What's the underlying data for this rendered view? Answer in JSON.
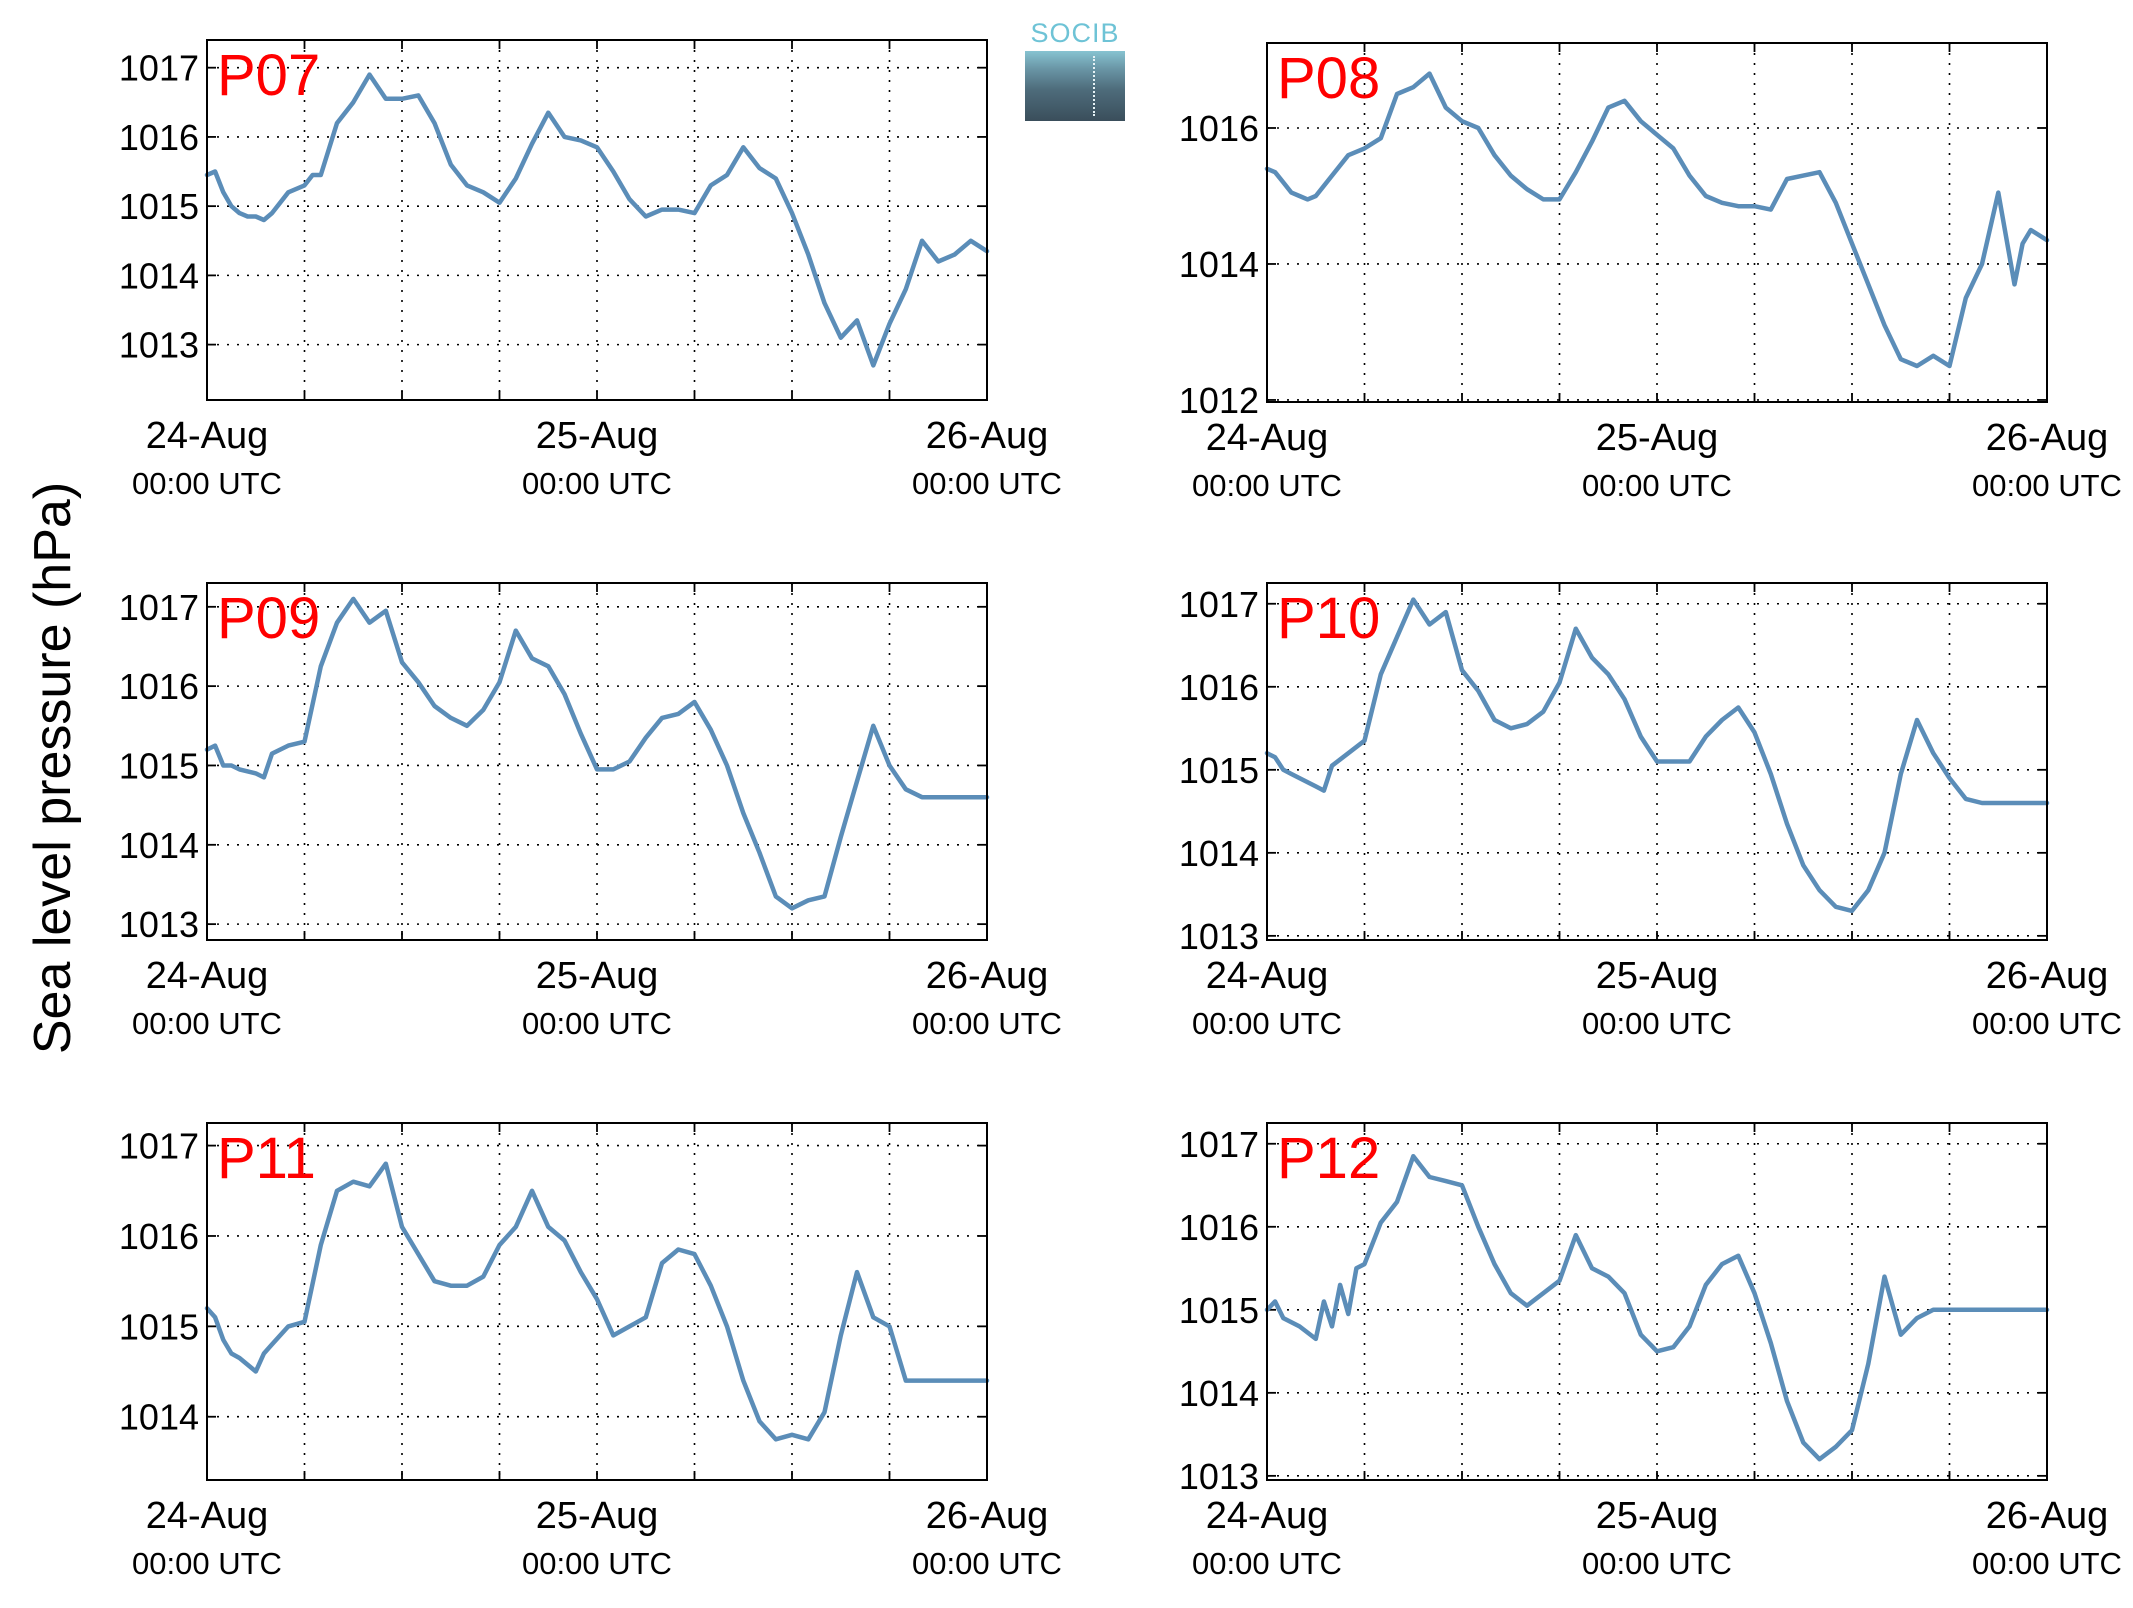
{
  "figure": {
    "ylabel": "Sea level pressure (hPa)",
    "line_color": "#5b8db8",
    "panel_label_color": "#ff0000",
    "logo_text": "SOCIB"
  },
  "chart_data": [
    {
      "type": "line",
      "panel_label": "P07",
      "ylim": [
        1012.2,
        1017.4
      ],
      "yticks": [
        1013,
        1014,
        1015,
        1016,
        1017
      ],
      "xlim": [
        0,
        48
      ],
      "xtick_labels": [
        {
          "x": 0,
          "day": "24-Aug",
          "time": "00:00 UTC"
        },
        {
          "x": 24,
          "day": "25-Aug",
          "time": "00:00 UTC"
        },
        {
          "x": 48,
          "day": "26-Aug",
          "time": "00:00 UTC"
        }
      ],
      "grid": true,
      "x_hours": [
        0,
        0.5,
        1,
        1.5,
        2,
        2.5,
        3,
        3.5,
        4,
        5,
        6,
        6.5,
        7,
        8,
        9,
        10,
        11,
        12,
        13,
        14,
        15,
        16,
        17,
        18,
        19,
        20,
        21,
        22,
        23,
        24,
        25,
        26,
        27,
        28,
        29,
        30,
        31,
        32,
        33,
        34,
        35,
        36,
        37,
        38,
        39,
        40,
        41,
        42,
        43,
        44,
        45,
        46,
        47,
        48
      ],
      "values": [
        1015.45,
        1015.5,
        1015.2,
        1015.0,
        1014.9,
        1014.85,
        1014.85,
        1014.8,
        1014.9,
        1015.2,
        1015.3,
        1015.45,
        1015.45,
        1016.2,
        1016.5,
        1016.9,
        1016.55,
        1016.55,
        1016.6,
        1016.2,
        1015.6,
        1015.3,
        1015.2,
        1015.05,
        1015.4,
        1015.9,
        1016.35,
        1016.0,
        1015.95,
        1015.85,
        1015.5,
        1015.1,
        1014.85,
        1014.95,
        1014.95,
        1014.9,
        1015.3,
        1015.45,
        1015.85,
        1015.55,
        1015.4,
        1014.9,
        1014.3,
        1013.6,
        1013.1,
        1013.35,
        1012.7,
        1013.3,
        1013.8,
        1014.5,
        1014.2,
        1014.3,
        1014.5,
        1014.35
      ]
    },
    {
      "type": "line",
      "panel_label": "P08",
      "ylim": [
        1011.97,
        1017.25
      ],
      "yticks": [
        1012,
        1014,
        1016
      ],
      "xlim": [
        0,
        48
      ],
      "xtick_labels": [
        {
          "x": 0,
          "day": "24-Aug",
          "time": "00:00 UTC"
        },
        {
          "x": 24,
          "day": "25-Aug",
          "time": "00:00 UTC"
        },
        {
          "x": 48,
          "day": "26-Aug",
          "time": "00:00 UTC"
        }
      ],
      "grid": true,
      "x_hours": [
        0,
        0.5,
        1,
        1.5,
        2,
        2.5,
        3,
        4,
        5,
        6,
        7,
        8,
        9,
        10,
        11,
        12,
        13,
        14,
        15,
        16,
        17,
        18,
        19,
        20,
        21,
        22,
        23,
        24,
        25,
        26,
        27,
        28,
        29,
        30,
        31,
        32,
        33,
        34,
        35,
        36,
        37,
        38,
        39,
        40,
        41,
        42,
        43,
        44,
        45,
        46,
        46.5,
        47,
        48
      ],
      "values": [
        1015.4,
        1015.35,
        1015.2,
        1015.05,
        1015.0,
        1014.95,
        1015.0,
        1015.3,
        1015.6,
        1015.7,
        1015.85,
        1016.5,
        1016.6,
        1016.8,
        1016.3,
        1016.1,
        1016.0,
        1015.6,
        1015.3,
        1015.1,
        1014.95,
        1014.95,
        1015.35,
        1015.8,
        1016.3,
        1016.4,
        1016.1,
        1015.9,
        1015.7,
        1015.3,
        1015.0,
        1014.9,
        1014.85,
        1014.85,
        1014.8,
        1015.25,
        1015.3,
        1015.35,
        1014.9,
        1014.3,
        1013.7,
        1013.1,
        1012.6,
        1012.5,
        1012.65,
        1012.5,
        1013.5,
        1014.0,
        1015.05,
        1013.7,
        1014.3,
        1014.5,
        1014.35
      ]
    },
    {
      "type": "line",
      "panel_label": "P09",
      "ylim": [
        1012.8,
        1017.3
      ],
      "yticks": [
        1013,
        1014,
        1015,
        1016,
        1017
      ],
      "xlim": [
        0,
        48
      ],
      "xtick_labels": [
        {
          "x": 0,
          "day": "24-Aug",
          "time": "00:00 UTC"
        },
        {
          "x": 24,
          "day": "25-Aug",
          "time": "00:00 UTC"
        },
        {
          "x": 48,
          "day": "26-Aug",
          "time": "00:00 UTC"
        }
      ],
      "grid": true,
      "x_hours": [
        0,
        0.5,
        1,
        1.5,
        2,
        3,
        3.5,
        4,
        5,
        6,
        7,
        8,
        9,
        10,
        11,
        12,
        13,
        14,
        15,
        16,
        17,
        18,
        19,
        20,
        21,
        22,
        23,
        24,
        25,
        26,
        27,
        28,
        29,
        30,
        31,
        32,
        33,
        34,
        35,
        36,
        37,
        38,
        39,
        40,
        41,
        42,
        43,
        44,
        45,
        46,
        47,
        48
      ],
      "values": [
        1015.2,
        1015.25,
        1015.0,
        1015.0,
        1014.95,
        1014.9,
        1014.85,
        1015.15,
        1015.25,
        1015.3,
        1016.25,
        1016.8,
        1017.1,
        1016.8,
        1016.95,
        1016.3,
        1016.05,
        1015.75,
        1015.6,
        1015.5,
        1015.7,
        1016.05,
        1016.7,
        1016.35,
        1016.25,
        1015.9,
        1015.4,
        1014.95,
        1014.95,
        1015.05,
        1015.35,
        1015.6,
        1015.65,
        1015.8,
        1015.45,
        1015.0,
        1014.4,
        1013.9,
        1013.35,
        1013.2,
        1013.3,
        1013.35,
        1014.1,
        1014.8,
        1015.5,
        1015.0,
        1014.7,
        1014.6,
        1014.6,
        1014.6,
        1014.6,
        1014.6
      ]
    },
    {
      "type": "line",
      "panel_label": "P10",
      "ylim": [
        1012.95,
        1017.25
      ],
      "yticks": [
        1013,
        1014,
        1015,
        1016,
        1017
      ],
      "xlim": [
        0,
        48
      ],
      "xtick_labels": [
        {
          "x": 0,
          "day": "24-Aug",
          "time": "00:00 UTC"
        },
        {
          "x": 24,
          "day": "25-Aug",
          "time": "00:00 UTC"
        },
        {
          "x": 48,
          "day": "26-Aug",
          "time": "00:00 UTC"
        }
      ],
      "grid": true,
      "x_hours": [
        0,
        0.5,
        1,
        1.5,
        2,
        3,
        3.5,
        4,
        5,
        6,
        7,
        8,
        9,
        10,
        11,
        12,
        13,
        14,
        15,
        16,
        17,
        18,
        19,
        20,
        21,
        22,
        23,
        24,
        25,
        26,
        27,
        28,
        29,
        30,
        31,
        32,
        33,
        34,
        35,
        36,
        37,
        38,
        39,
        40,
        41,
        42,
        43,
        44,
        45,
        46,
        47,
        47.5,
        48
      ],
      "values": [
        1015.2,
        1015.15,
        1015.0,
        1014.95,
        1014.9,
        1014.8,
        1014.75,
        1015.05,
        1015.2,
        1015.35,
        1016.15,
        1016.6,
        1017.05,
        1016.75,
        1016.9,
        1016.2,
        1015.95,
        1015.6,
        1015.5,
        1015.55,
        1015.7,
        1016.05,
        1016.7,
        1016.35,
        1016.15,
        1015.85,
        1015.4,
        1015.1,
        1015.1,
        1015.1,
        1015.4,
        1015.6,
        1015.75,
        1015.45,
        1014.95,
        1014.35,
        1013.85,
        1013.55,
        1013.35,
        1013.3,
        1013.55,
        1014.0,
        1014.95,
        1015.6,
        1015.2,
        1014.9,
        1014.65,
        1014.6,
        1014.6,
        1014.6,
        1014.6,
        1014.6,
        1014.6
      ]
    },
    {
      "type": "line",
      "panel_label": "P11",
      "ylim": [
        1013.3,
        1017.25
      ],
      "yticks": [
        1014,
        1015,
        1016,
        1017
      ],
      "xlim": [
        0,
        48
      ],
      "xtick_labels": [
        {
          "x": 0,
          "day": "24-Aug",
          "time": "00:00 UTC"
        },
        {
          "x": 24,
          "day": "25-Aug",
          "time": "00:00 UTC"
        },
        {
          "x": 48,
          "day": "26-Aug",
          "time": "00:00 UTC"
        }
      ],
      "grid": true,
      "x_hours": [
        0,
        0.5,
        1,
        1.5,
        2,
        3,
        3.5,
        4,
        5,
        6,
        7,
        8,
        9,
        10,
        11,
        12,
        13,
        14,
        15,
        16,
        17,
        18,
        19,
        20,
        21,
        22,
        23,
        24,
        25,
        26,
        27,
        28,
        29,
        30,
        31,
        32,
        33,
        34,
        35,
        36,
        37,
        38,
        39,
        40,
        41,
        42,
        43,
        44,
        45,
        46,
        47,
        48
      ],
      "values": [
        1015.2,
        1015.1,
        1014.85,
        1014.7,
        1014.65,
        1014.5,
        1014.7,
        1014.8,
        1015.0,
        1015.05,
        1015.9,
        1016.5,
        1016.6,
        1016.55,
        1016.8,
        1016.1,
        1015.8,
        1015.5,
        1015.45,
        1015.45,
        1015.55,
        1015.9,
        1016.1,
        1016.5,
        1016.1,
        1015.95,
        1015.6,
        1015.3,
        1014.9,
        1015.0,
        1015.1,
        1015.7,
        1015.85,
        1015.8,
        1015.45,
        1015.0,
        1014.4,
        1013.95,
        1013.75,
        1013.8,
        1013.75,
        1014.05,
        1014.9,
        1015.6,
        1015.1,
        1015.0,
        1014.4,
        1014.4,
        1014.4,
        1014.4,
        1014.4,
        1014.4
      ]
    },
    {
      "type": "line",
      "panel_label": "P12",
      "ylim": [
        1012.95,
        1017.25
      ],
      "yticks": [
        1013,
        1014,
        1015,
        1016,
        1017
      ],
      "xlim": [
        0,
        48
      ],
      "xtick_labels": [
        {
          "x": 0,
          "day": "24-Aug",
          "time": "00:00 UTC"
        },
        {
          "x": 24,
          "day": "25-Aug",
          "time": "00:00 UTC"
        },
        {
          "x": 48,
          "day": "26-Aug",
          "time": "00:00 UTC"
        }
      ],
      "grid": true,
      "x_hours": [
        0,
        0.5,
        1,
        1.5,
        2,
        3,
        3.5,
        4,
        4.5,
        5,
        5.5,
        6,
        7,
        8,
        9,
        10,
        11,
        12,
        13,
        14,
        15,
        16,
        17,
        18,
        19,
        20,
        21,
        22,
        23,
        24,
        25,
        26,
        27,
        28,
        29,
        30,
        31,
        32,
        33,
        34,
        35,
        36,
        37,
        38,
        39,
        40,
        41,
        42,
        43,
        44,
        45,
        46,
        47,
        48
      ],
      "values": [
        1015.0,
        1015.1,
        1014.9,
        1014.85,
        1014.8,
        1014.65,
        1015.1,
        1014.8,
        1015.3,
        1014.95,
        1015.5,
        1015.55,
        1016.05,
        1016.3,
        1016.85,
        1016.6,
        1016.55,
        1016.5,
        1016.0,
        1015.55,
        1015.2,
        1015.05,
        1015.2,
        1015.35,
        1015.9,
        1015.5,
        1015.4,
        1015.2,
        1014.7,
        1014.5,
        1014.55,
        1014.8,
        1015.3,
        1015.55,
        1015.65,
        1015.2,
        1014.6,
        1013.9,
        1013.4,
        1013.2,
        1013.35,
        1013.55,
        1014.35,
        1015.4,
        1014.7,
        1014.9,
        1015.0,
        1015.0,
        1015.0,
        1015.0,
        1015.0,
        1015.0,
        1015.0,
        1015.0
      ]
    }
  ]
}
